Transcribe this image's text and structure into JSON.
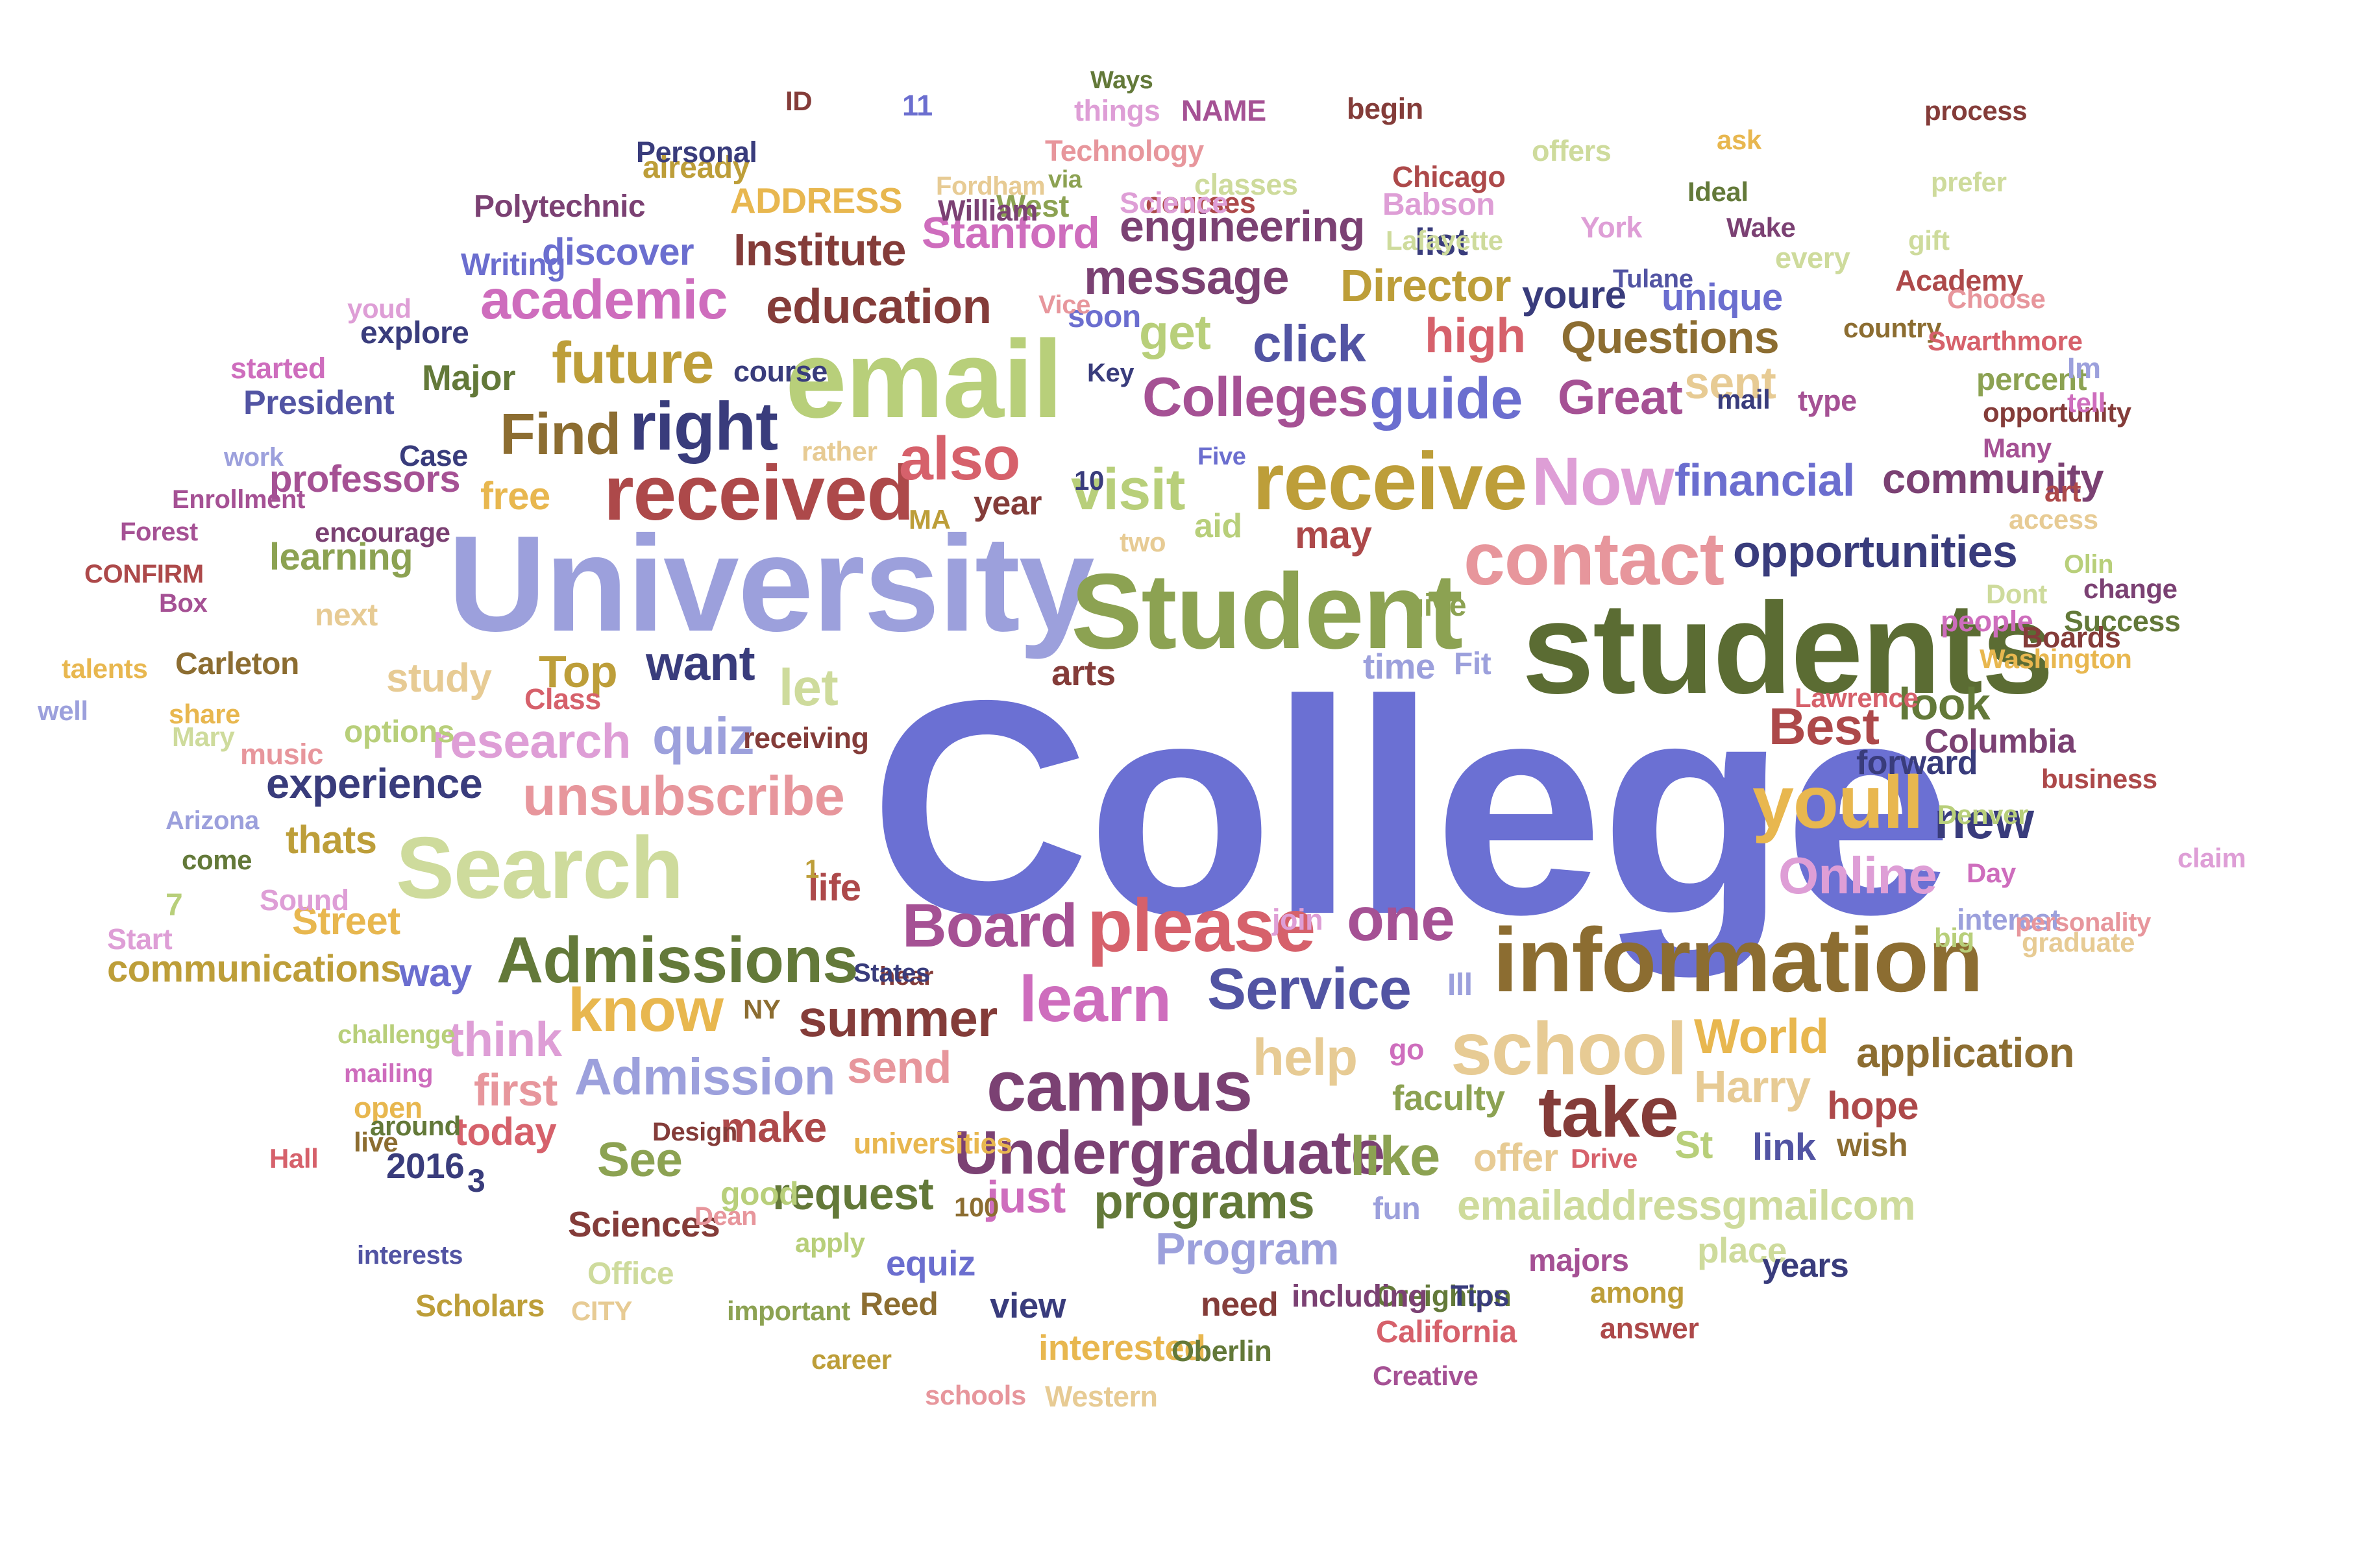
{
  "palette": [
    "#6b70d3",
    "#5b6c33",
    "#9ca0dc",
    "#7a3a66",
    "#c25460",
    "#e1a3cf",
    "#b7903d",
    "#b8cf7a",
    "#e8b74f",
    "#393c7c",
    "#843c39",
    "#d6616b",
    "#8c6d31",
    "#cedb9c",
    "#a55194",
    "#637939",
    "#e7969c",
    "#5254a3",
    "#bd9e39",
    "#e7cb94",
    "#ce6dbd",
    "#6b6ecf",
    "#8ca252",
    "#ad494a",
    "#de9ed6",
    "#7b4173"
  ],
  "words": [
    {
      "text": "College",
      "color": "#6b70d3"
    },
    {
      "text": "students",
      "color": "#5b6c33"
    },
    {
      "text": "University",
      "color": "#9ca0dc"
    },
    {
      "text": "Student",
      "color": "#8ca252"
    },
    {
      "text": "information",
      "color": "#8c6d31"
    },
    {
      "text": "email",
      "color": "#b8cf7a"
    },
    {
      "text": "Search",
      "color": "#cedb9c"
    },
    {
      "text": "received",
      "color": "#ad494a"
    },
    {
      "text": "receive",
      "color": "#bd9e39"
    },
    {
      "text": "contact",
      "color": "#e7969c"
    },
    {
      "text": "please",
      "color": "#d6616b"
    },
    {
      "text": "school",
      "color": "#e7cb94"
    },
    {
      "text": "youll",
      "color": "#e8b74f"
    },
    {
      "text": "Admissions",
      "color": "#637939"
    },
    {
      "text": "campus",
      "color": "#7b4173"
    },
    {
      "text": "take",
      "color": "#843c39"
    },
    {
      "text": "Undergraduate",
      "color": "#7b4173"
    },
    {
      "text": "learn",
      "color": "#ce6dbd"
    },
    {
      "text": "Board",
      "color": "#a55194"
    },
    {
      "text": "Service",
      "color": "#5254a3"
    },
    {
      "text": "Now",
      "color": "#de9ed6"
    },
    {
      "text": "unsubscribe",
      "color": "#e7969c"
    },
    {
      "text": "Colleges",
      "color": "#a55194"
    },
    {
      "text": "right",
      "color": "#393c7c"
    },
    {
      "text": "guide",
      "color": "#6b6ecf"
    },
    {
      "text": "academic",
      "color": "#ce6dbd"
    },
    {
      "text": "future",
      "color": "#bd9e39"
    },
    {
      "text": "Find",
      "color": "#8c6d31"
    },
    {
      "text": "visit",
      "color": "#b8cf7a"
    },
    {
      "text": "know",
      "color": "#e8b74f"
    },
    {
      "text": "one",
      "color": "#a55194"
    },
    {
      "text": "also",
      "color": "#d6616b"
    },
    {
      "text": "Online",
      "color": "#de9ed6"
    },
    {
      "text": "summer",
      "color": "#843c39"
    },
    {
      "text": "like",
      "color": "#8ca252"
    },
    {
      "text": "Admission",
      "color": "#9ca0dc"
    },
    {
      "text": "research",
      "color": "#de9ed6"
    },
    {
      "text": "quiz",
      "color": "#9ca0dc"
    },
    {
      "text": "let",
      "color": "#cedb9c"
    },
    {
      "text": "opportunities",
      "color": "#393c7c"
    },
    {
      "text": "education",
      "color": "#843c39"
    },
    {
      "text": "message",
      "color": "#7b4173"
    },
    {
      "text": "Institute",
      "color": "#843c39"
    },
    {
      "text": "engineering",
      "color": "#7b4173"
    },
    {
      "text": "Stanford",
      "color": "#ce6dbd"
    },
    {
      "text": "Director",
      "color": "#bd9e39"
    },
    {
      "text": "high",
      "color": "#d6616b"
    },
    {
      "text": "click",
      "color": "#5254a3"
    },
    {
      "text": "Questions",
      "color": "#8c6d31"
    },
    {
      "text": "Great",
      "color": "#a55194"
    },
    {
      "text": "financial",
      "color": "#6b6ecf"
    },
    {
      "text": "community",
      "color": "#7b4173"
    },
    {
      "text": "Best",
      "color": "#ad494a"
    },
    {
      "text": "new",
      "color": "#393c7c"
    },
    {
      "text": "look",
      "color": "#637939"
    },
    {
      "text": "experience",
      "color": "#393c7c"
    },
    {
      "text": "help",
      "color": "#e7cb94"
    },
    {
      "text": "World",
      "color": "#e8b74f"
    },
    {
      "text": "application",
      "color": "#8c6d31"
    },
    {
      "text": "Harry",
      "color": "#e7cb94"
    },
    {
      "text": "programs",
      "color": "#637939"
    },
    {
      "text": "Program",
      "color": "#9ca0dc"
    },
    {
      "text": "emailaddressgmailcom",
      "color": "#cedb9c"
    },
    {
      "text": "request",
      "color": "#637939"
    },
    {
      "text": "just",
      "color": "#ce6dbd"
    },
    {
      "text": "make",
      "color": "#ad494a"
    },
    {
      "text": "See",
      "color": "#8ca252"
    },
    {
      "text": "send",
      "color": "#e7969c"
    },
    {
      "text": "think",
      "color": "#de9ed6"
    },
    {
      "text": "first",
      "color": "#e7969c"
    },
    {
      "text": "today",
      "color": "#d6616b"
    },
    {
      "text": "Street",
      "color": "#e8b74f"
    },
    {
      "text": "communications",
      "color": "#bd9e39"
    },
    {
      "text": "want",
      "color": "#393c7c"
    },
    {
      "text": "Top",
      "color": "#bd9e39"
    },
    {
      "text": "study",
      "color": "#e7cb94"
    },
    {
      "text": "thats",
      "color": "#bd9e39"
    },
    {
      "text": "way",
      "color": "#6b6ecf"
    },
    {
      "text": "professors",
      "color": "#a55194"
    },
    {
      "text": "free",
      "color": "#e8b74f"
    },
    {
      "text": "learning",
      "color": "#8ca252"
    },
    {
      "text": "discover",
      "color": "#6b6ecf"
    },
    {
      "text": "explore",
      "color": "#393c7c"
    },
    {
      "text": "Major",
      "color": "#637939"
    },
    {
      "text": "President",
      "color": "#5254a3"
    },
    {
      "text": "Polytechnic",
      "color": "#7b4173"
    },
    {
      "text": "ADDRESS",
      "color": "#e8b74f"
    },
    {
      "text": "get",
      "color": "#b8cf7a"
    },
    {
      "text": "sent",
      "color": "#e7cb94"
    },
    {
      "text": "unique",
      "color": "#6b6ecf"
    },
    {
      "text": "youre",
      "color": "#393c7c"
    },
    {
      "text": "list",
      "color": "#393c7c"
    },
    {
      "text": "soon",
      "color": "#6b6ecf"
    },
    {
      "text": "year",
      "color": "#843c39"
    },
    {
      "text": "may",
      "color": "#ad494a"
    },
    {
      "text": "aid",
      "color": "#b8cf7a"
    },
    {
      "text": "time",
      "color": "#9ca0dc"
    },
    {
      "text": "Fit",
      "color": "#9ca0dc"
    },
    {
      "text": "arts",
      "color": "#843c39"
    },
    {
      "text": "give",
      "color": "#8ca252"
    },
    {
      "text": "life",
      "color": "#ad494a"
    },
    {
      "text": "hear",
      "color": "#843c39"
    },
    {
      "text": "NY",
      "color": "#8c6d31"
    },
    {
      "text": "Ill",
      "color": "#9ca0dc"
    },
    {
      "text": "go",
      "color": "#ce6dbd"
    },
    {
      "text": "St",
      "color": "#b8cf7a"
    },
    {
      "text": "link",
      "color": "#5254a3"
    },
    {
      "text": "wish",
      "color": "#8c6d31"
    },
    {
      "text": "hope",
      "color": "#ad494a"
    },
    {
      "text": "faculty",
      "color": "#8ca252"
    },
    {
      "text": "offer",
      "color": "#e7cb94"
    },
    {
      "text": "Drive",
      "color": "#d6616b"
    },
    {
      "text": "fun",
      "color": "#9ca0dc"
    },
    {
      "text": "majors",
      "color": "#a55194"
    },
    {
      "text": "place",
      "color": "#cedb9c"
    },
    {
      "text": "years",
      "color": "#393c7c"
    },
    {
      "text": "Creighton",
      "color": "#637939"
    },
    {
      "text": "Tips",
      "color": "#393c7c"
    },
    {
      "text": "among",
      "color": "#bd9e39"
    },
    {
      "text": "answer",
      "color": "#ad494a"
    },
    {
      "text": "including",
      "color": "#7b4173"
    },
    {
      "text": "need",
      "color": "#843c39"
    },
    {
      "text": "view",
      "color": "#393c7c"
    },
    {
      "text": "interested",
      "color": "#e8b74f"
    },
    {
      "text": "Oberlin",
      "color": "#637939"
    },
    {
      "text": "California",
      "color": "#d6616b"
    },
    {
      "text": "Creative",
      "color": "#a55194"
    },
    {
      "text": "Western",
      "color": "#e7cb94"
    },
    {
      "text": "schools",
      "color": "#e7969c"
    },
    {
      "text": "career",
      "color": "#bd9e39"
    },
    {
      "text": "important",
      "color": "#8ca252"
    },
    {
      "text": "Reed",
      "color": "#8c6d31"
    },
    {
      "text": "equiz",
      "color": "#6b6ecf"
    },
    {
      "text": "apply",
      "color": "#b8cf7a"
    },
    {
      "text": "Office",
      "color": "#cedb9c"
    },
    {
      "text": "CITY",
      "color": "#e7cb94"
    },
    {
      "text": "Scholars",
      "color": "#bd9e39"
    },
    {
      "text": "interests",
      "color": "#5254a3"
    },
    {
      "text": "Sciences",
      "color": "#843c39"
    },
    {
      "text": "Dean",
      "color": "#e7969c"
    },
    {
      "text": "good",
      "color": "#b8cf7a"
    },
    {
      "text": "100",
      "color": "#8c6d31"
    },
    {
      "text": "3",
      "color": "#393c7c"
    },
    {
      "text": "2016",
      "color": "#393c7c"
    },
    {
      "text": "Hall",
      "color": "#d6616b"
    },
    {
      "text": "Design",
      "color": "#843c39"
    },
    {
      "text": "live",
      "color": "#8c6d31"
    },
    {
      "text": "open",
      "color": "#e8b74f"
    },
    {
      "text": "around",
      "color": "#637939"
    },
    {
      "text": "mailing",
      "color": "#ce6dbd"
    },
    {
      "text": "challenge",
      "color": "#b8cf7a"
    },
    {
      "text": "universities",
      "color": "#e8b74f"
    },
    {
      "text": "States",
      "color": "#393c7c"
    },
    {
      "text": "Start",
      "color": "#de9ed6"
    },
    {
      "text": "7",
      "color": "#b8cf7a"
    },
    {
      "text": "Sound",
      "color": "#de9ed6"
    },
    {
      "text": "come",
      "color": "#637939"
    },
    {
      "text": "Arizona",
      "color": "#9ca0dc"
    },
    {
      "text": "music",
      "color": "#e7969c"
    },
    {
      "text": "options",
      "color": "#b8cf7a"
    },
    {
      "text": "Mary",
      "color": "#cedb9c"
    },
    {
      "text": "share",
      "color": "#e8b74f"
    },
    {
      "text": "well",
      "color": "#9ca0dc"
    },
    {
      "text": "talents",
      "color": "#e8b74f"
    },
    {
      "text": "Carleton",
      "color": "#8c6d31"
    },
    {
      "text": "Class",
      "color": "#d6616b"
    },
    {
      "text": "receiving",
      "color": "#843c39"
    },
    {
      "text": "1",
      "color": "#bd9e39"
    },
    {
      "text": "join",
      "color": "#de9ed6"
    },
    {
      "text": "Box",
      "color": "#a55194"
    },
    {
      "text": "next",
      "color": "#e7cb94"
    },
    {
      "text": "CONFIRM",
      "color": "#ad494a"
    },
    {
      "text": "Forest",
      "color": "#a55194"
    },
    {
      "text": "encourage",
      "color": "#7b4173"
    },
    {
      "text": "Enrollment",
      "color": "#a55194"
    },
    {
      "text": "work",
      "color": "#9ca0dc"
    },
    {
      "text": "Case",
      "color": "#393c7c"
    },
    {
      "text": "started",
      "color": "#ce6dbd"
    },
    {
      "text": "youd",
      "color": "#de9ed6"
    },
    {
      "text": "Writing",
      "color": "#6b6ecf"
    },
    {
      "text": "already",
      "color": "#bd9e39"
    },
    {
      "text": "course",
      "color": "#393c7c"
    },
    {
      "text": "rather",
      "color": "#e7cb94"
    },
    {
      "text": "MA",
      "color": "#bd9e39"
    },
    {
      "text": "two",
      "color": "#e7cb94"
    },
    {
      "text": "Five",
      "color": "#6b6ecf"
    },
    {
      "text": "10",
      "color": "#393c7c"
    },
    {
      "text": "Key",
      "color": "#393c7c"
    },
    {
      "text": "Vice",
      "color": "#e7969c"
    },
    {
      "text": "ID",
      "color": "#843c39"
    },
    {
      "text": "11",
      "color": "#6b6ecf"
    },
    {
      "text": "Ways",
      "color": "#637939"
    },
    {
      "text": "things",
      "color": "#de9ed6"
    },
    {
      "text": "NAME",
      "color": "#a55194"
    },
    {
      "text": "begin",
      "color": "#843c39"
    },
    {
      "text": "Personal",
      "color": "#393c7c"
    },
    {
      "text": "Technology",
      "color": "#e7969c"
    },
    {
      "text": "Fordham",
      "color": "#e7cb94"
    },
    {
      "text": "West",
      "color": "#8ca252"
    },
    {
      "text": "courses",
      "color": "#ad494a"
    },
    {
      "text": "classes",
      "color": "#cedb9c"
    },
    {
      "text": "Chicago",
      "color": "#ad494a"
    },
    {
      "text": "offers",
      "color": "#cedb9c"
    },
    {
      "text": "ask",
      "color": "#e8b74f"
    },
    {
      "text": "prefer",
      "color": "#cedb9c"
    },
    {
      "text": "via",
      "color": "#8ca252"
    },
    {
      "text": "William",
      "color": "#7b4173"
    },
    {
      "text": "Science",
      "color": "#de9ed6"
    },
    {
      "text": "Babson",
      "color": "#de9ed6"
    },
    {
      "text": "Ideal",
      "color": "#637939"
    },
    {
      "text": "process",
      "color": "#843c39"
    },
    {
      "text": "Wake",
      "color": "#7b4173"
    },
    {
      "text": "Lafayette",
      "color": "#cedb9c"
    },
    {
      "text": "York",
      "color": "#de9ed6"
    },
    {
      "text": "gift",
      "color": "#cedb9c"
    },
    {
      "text": "every",
      "color": "#cedb9c"
    },
    {
      "text": "Academy",
      "color": "#ad494a"
    },
    {
      "text": "Tulane",
      "color": "#5254a3"
    },
    {
      "text": "Choose",
      "color": "#e7969c"
    },
    {
      "text": "country",
      "color": "#8c6d31"
    },
    {
      "text": "Swarthmore",
      "color": "#d6616b"
    },
    {
      "text": "percent",
      "color": "#8ca252"
    },
    {
      "text": "opportunity",
      "color": "#843c39"
    },
    {
      "text": "type",
      "color": "#a55194"
    },
    {
      "text": "mail",
      "color": "#393c7c"
    },
    {
      "text": "Im",
      "color": "#9ca0dc"
    },
    {
      "text": "tell",
      "color": "#ce6dbd"
    },
    {
      "text": "Many",
      "color": "#a55194"
    },
    {
      "text": "art",
      "color": "#ad494a"
    },
    {
      "text": "access",
      "color": "#e7cb94"
    },
    {
      "text": "Dont",
      "color": "#cedb9c"
    },
    {
      "text": "Olin",
      "color": "#b8cf7a"
    },
    {
      "text": "change",
      "color": "#7b4173"
    },
    {
      "text": "people",
      "color": "#ce6dbd"
    },
    {
      "text": "Success",
      "color": "#637939"
    },
    {
      "text": "Washington",
      "color": "#e8b74f"
    },
    {
      "text": "Boards",
      "color": "#843c39"
    },
    {
      "text": "Lawrence",
      "color": "#d6616b"
    },
    {
      "text": "Columbia",
      "color": "#7b4173"
    },
    {
      "text": "forward",
      "color": "#393c7c"
    },
    {
      "text": "business",
      "color": "#ad494a"
    },
    {
      "text": "Denver",
      "color": "#b8cf7a"
    },
    {
      "text": "Day",
      "color": "#ce6dbd"
    },
    {
      "text": "claim",
      "color": "#de9ed6"
    },
    {
      "text": "interest",
      "color": "#9ca0dc"
    },
    {
      "text": "big",
      "color": "#b8cf7a"
    },
    {
      "text": "personality",
      "color": "#e7969c"
    },
    {
      "text": "graduate",
      "color": "#e7cb94"
    }
  ]
}
